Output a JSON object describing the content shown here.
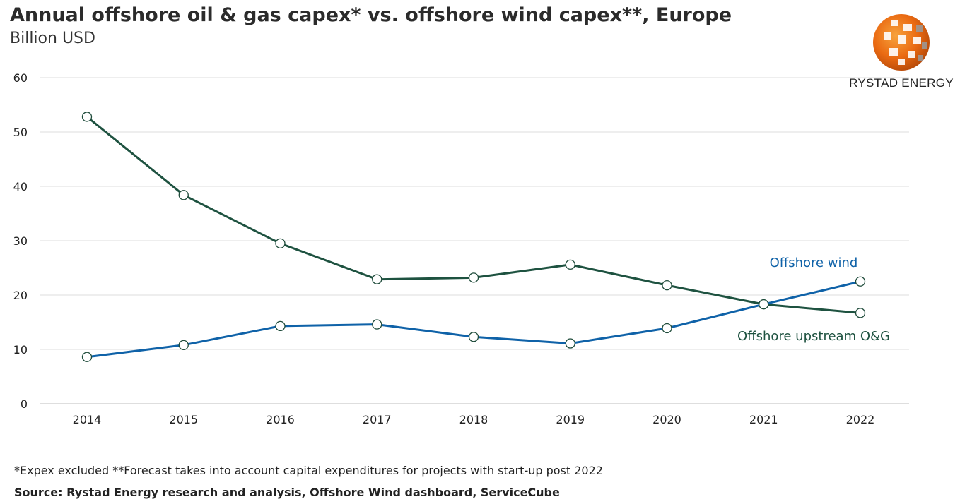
{
  "header": {
    "title": "Annual offshore oil & gas capex* vs. offshore wind capex**, Europe",
    "subtitle": "Billion USD"
  },
  "logo": {
    "text": "RYSTAD ENERGY",
    "icon": "globe-logo-icon"
  },
  "chart_data": {
    "type": "line",
    "x": [
      "2014",
      "2015",
      "2016",
      "2017",
      "2018",
      "2019",
      "2020",
      "2021",
      "2022"
    ],
    "ylim": [
      0,
      60
    ],
    "yticks": [
      "0",
      "10",
      "20",
      "30",
      "40",
      "50",
      "60"
    ],
    "grid": true,
    "series": [
      {
        "name": "Offshore upstream O&G",
        "color": "#1e5240",
        "values": [
          52.8,
          38.4,
          29.5,
          22.9,
          23.2,
          25.6,
          21.8,
          18.3,
          16.7
        ]
      },
      {
        "name": "Offshore wind",
        "color": "#0f62a8",
        "values": [
          8.6,
          10.8,
          14.3,
          14.6,
          12.3,
          11.1,
          13.9,
          18.3,
          22.5
        ]
      }
    ]
  },
  "footer": {
    "footnote": "*Expex excluded **Forecast takes into account capital expenditures for projects with start-up post 2022",
    "source": "Source: Rystad Energy research and analysis, Offshore Wind dashboard, ServiceCube"
  }
}
